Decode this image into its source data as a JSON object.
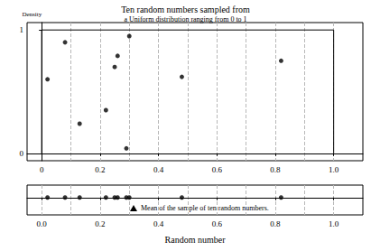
{
  "chart_data": [
    {
      "type": "scatter",
      "title": "Ten random numbers sampled from",
      "subtitle": "a Uniform distribution ranging from 0 to 1",
      "y_label": "Density",
      "series": [
        {
          "type": "line",
          "color": "#000000",
          "line_style": "solid",
          "x": [
            0,
            0,
            1,
            1
          ],
          "values": [
            0,
            1,
            1,
            0
          ]
        },
        {
          "type": "scatter",
          "color": "#000000",
          "marker": "circle",
          "x": [
            0.02,
            0.08,
            0.13,
            0.22,
            0.25,
            0.26,
            0.29,
            0.3,
            0.48,
            0.82
          ],
          "values": [
            0.6,
            0.9,
            0.24,
            0.35,
            0.7,
            0.79,
            0.04,
            0.95,
            0.62,
            0.75
          ]
        }
      ],
      "xlim": [
        -0.05,
        1.1
      ],
      "ylim": [
        -0.06,
        1.06
      ],
      "xticks": [
        0,
        0.2,
        0.4,
        0.6,
        0.8,
        {
          "value": 1,
          "label": "1.0"
        }
      ],
      "yticks": [
        0,
        1
      ],
      "grid": true
    },
    {
      "type": "scatter",
      "x_label": "Random number",
      "series": [
        {
          "type": "scatter",
          "color": "#000000",
          "marker": "circle",
          "x": [
            0.02,
            0.08,
            0.13,
            0.22,
            0.25,
            0.26,
            0.29,
            0.3,
            0.48,
            0.82
          ],
          "values": [
            0,
            0,
            0,
            0,
            0,
            0,
            0,
            0,
            0,
            0
          ]
        }
      ],
      "xlim": [
        -0.05,
        1.1
      ],
      "ylim": [
        -1.4,
        1
      ],
      "xticks": [
        {
          "value": 0,
          "label": "0.0"
        },
        0.2,
        0.4,
        0.6,
        0.8,
        {
          "value": 1,
          "label": "1.0"
        }
      ],
      "yticks": [],
      "tick_labels": "x",
      "grid": true,
      "annotations": [
        {
          "text": "Mean of the sample of ten random numbers.",
          "marker": "triangle"
        }
      ]
    }
  ]
}
